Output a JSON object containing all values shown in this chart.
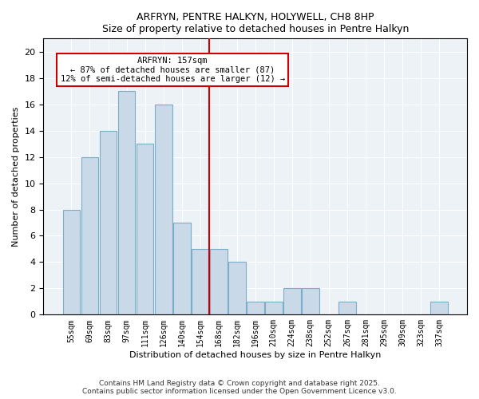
{
  "title1": "ARFRYN, PENTRE HALKYN, HOLYWELL, CH8 8HP",
  "title2": "Size of property relative to detached houses in Pentre Halkyn",
  "xlabel": "Distribution of detached houses by size in Pentre Halkyn",
  "ylabel": "Number of detached properties",
  "bar_categories": [
    "55sqm",
    "69sqm",
    "83sqm",
    "97sqm",
    "111sqm",
    "126sqm",
    "140sqm",
    "154sqm",
    "168sqm",
    "182sqm",
    "196sqm",
    "210sqm",
    "224sqm",
    "238sqm",
    "252sqm",
    "267sqm",
    "281sqm",
    "295sqm",
    "309sqm",
    "323sqm",
    "337sqm"
  ],
  "bar_values": [
    8,
    12,
    14,
    17,
    13,
    16,
    7,
    5,
    5,
    4,
    1,
    1,
    2,
    2,
    0,
    1,
    0,
    0,
    0,
    0,
    1
  ],
  "bar_color": "#c9d9e8",
  "bar_edgecolor": "#7aaec8",
  "vline_x": 7.5,
  "vline_color": "#cc0000",
  "annotation_text": "ARFRYN: 157sqm\n← 87% of detached houses are smaller (87)\n12% of semi-detached houses are larger (12) →",
  "ylim": [
    0,
    21
  ],
  "yticks": [
    0,
    2,
    4,
    6,
    8,
    10,
    12,
    14,
    16,
    18,
    20
  ],
  "background_color": "#edf2f7",
  "footer": "Contains HM Land Registry data © Crown copyright and database right 2025.\nContains public sector information licensed under the Open Government Licence v3.0."
}
